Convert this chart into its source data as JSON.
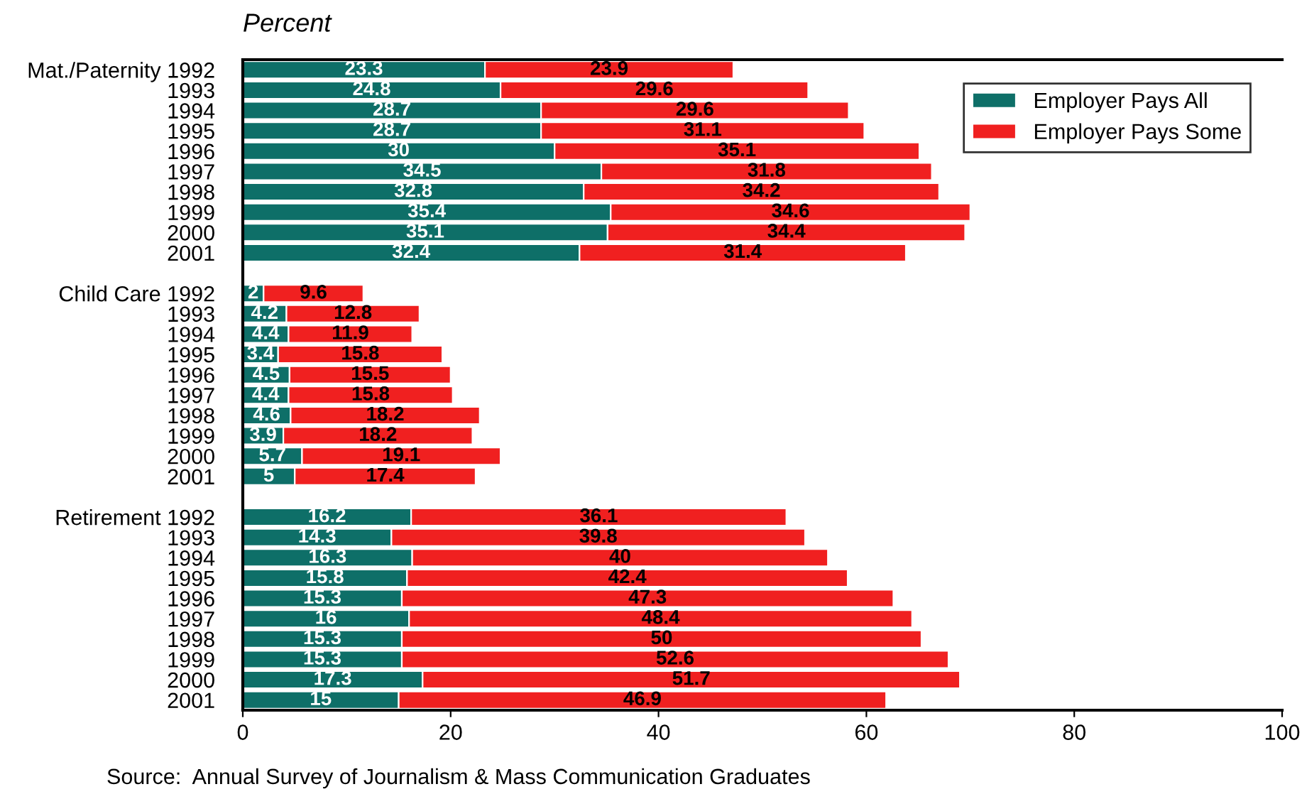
{
  "chart_data": {
    "type": "bar",
    "orientation": "horizontal",
    "stacked": true,
    "title": "Percent",
    "categories": [
      "Mat./Paternity 1992",
      "1993",
      "1994",
      "1995",
      "1996",
      "1997",
      "1998",
      "1999",
      "2000",
      "2001",
      null,
      "Child Care 1992",
      "1993",
      "1994",
      "1995",
      "1996",
      "1997",
      "1998",
      "1999",
      "2000",
      "2001",
      null,
      "Retirement 1992",
      "1993",
      "1994",
      "1995",
      "1996",
      "1997",
      "1998",
      "1999",
      "2000",
      "2001"
    ],
    "series": [
      {
        "name": "Employer Pays All",
        "color": "#0e6f68",
        "values": [
          23.3,
          24.8,
          28.7,
          28.7,
          30,
          34.5,
          32.8,
          35.4,
          35.1,
          32.4,
          null,
          2,
          4.2,
          4.4,
          3.4,
          4.5,
          4.4,
          4.6,
          3.9,
          5.7,
          5,
          null,
          16.2,
          14.3,
          16.3,
          15.8,
          15.3,
          16,
          15.3,
          15.3,
          17.3,
          15
        ]
      },
      {
        "name": "Employer Pays Some",
        "color": "#f02020",
        "values": [
          23.9,
          29.6,
          29.6,
          31.1,
          35.1,
          31.8,
          34.2,
          34.6,
          34.4,
          31.4,
          null,
          9.6,
          12.8,
          11.9,
          15.8,
          15.5,
          15.8,
          18.2,
          18.2,
          19.1,
          17.4,
          null,
          36.1,
          39.8,
          40,
          42.4,
          47.3,
          48.4,
          50,
          52.6,
          51.7,
          46.9
        ]
      }
    ],
    "xlim": [
      0,
      100
    ],
    "xticks": [
      0,
      20,
      40,
      60,
      80,
      100
    ],
    "grid": false,
    "legend": "top right",
    "data_labels": true,
    "annotations": [
      "Source:  Annual Survey of Journalism & Mass Communication Graduates"
    ]
  }
}
